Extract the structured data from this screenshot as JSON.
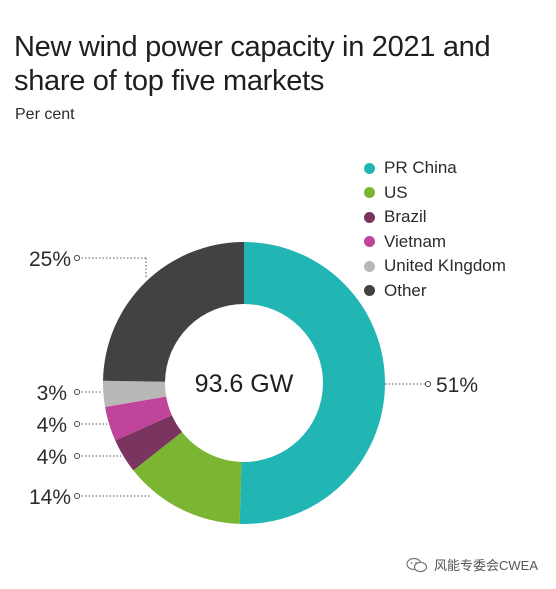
{
  "title_line1": "New wind power capacity in 2021 and",
  "title_line2": "share of top five markets",
  "subtitle": "Per cent",
  "watermark": "风能专委会CWEA",
  "chart_data": {
    "type": "pie",
    "variant": "donut",
    "title": "New wind power capacity in 2021 and share of top five markets",
    "subtitle": "Per cent",
    "center_label": "93.6 GW",
    "legend_position": "top-right",
    "slices": [
      {
        "name": "PR China",
        "value": 51,
        "label": "51%",
        "color": "#21b5b3"
      },
      {
        "name": "US",
        "value": 14,
        "label": "14%",
        "color": "#7ab631"
      },
      {
        "name": "Brazil",
        "value": 4,
        "label": "4%",
        "color": "#7a3460"
      },
      {
        "name": "Vietnam",
        "value": 4,
        "label": "4%",
        "color": "#c0449a"
      },
      {
        "name": "United KIngdom",
        "value": 3,
        "label": "3%",
        "color": "#b8b8b8"
      },
      {
        "name": "Other",
        "value": 25,
        "label": "25%",
        "color": "#424242"
      }
    ]
  }
}
